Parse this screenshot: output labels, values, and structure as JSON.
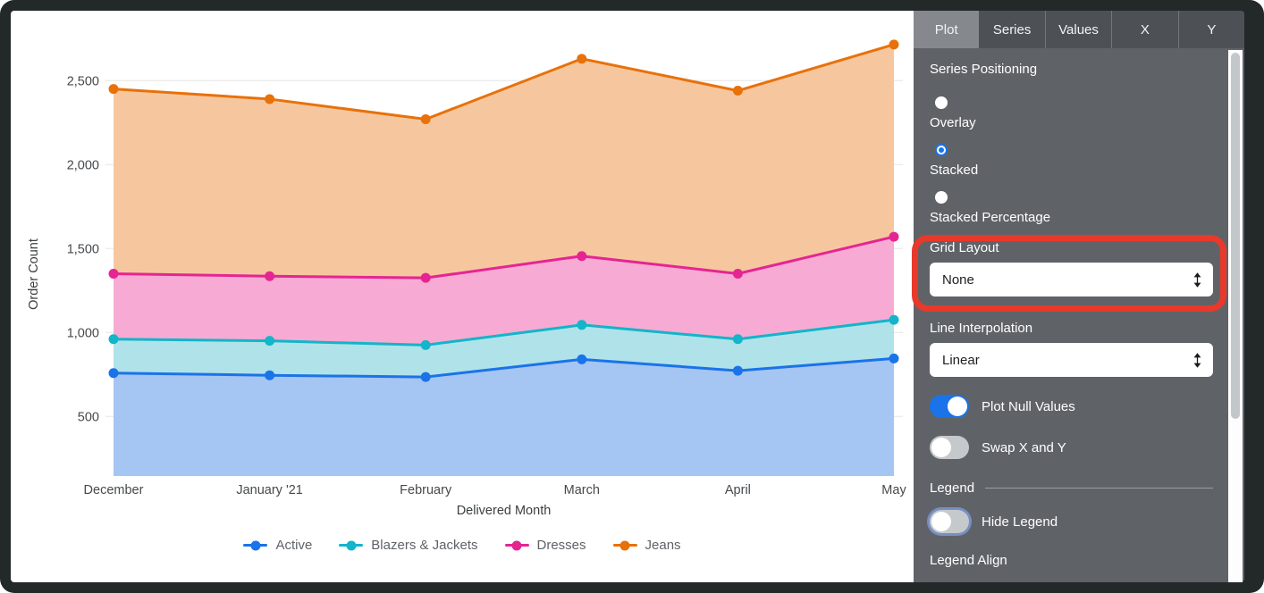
{
  "colors": {
    "accent_blue": "#1a73e8",
    "annotation_red": "#e8392b",
    "panel_background": "#5f6368"
  },
  "annotation": {
    "shape": "rounded-rectangle",
    "color": "#e8392b",
    "target": "Grid Layout"
  },
  "chart_data": {
    "type": "area",
    "stacking": "stacked",
    "xlabel": "Delivered Month",
    "ylabel": "Order Count",
    "x_categories": [
      "December",
      "January '21",
      "February",
      "March",
      "April",
      "May"
    ],
    "y_ticks": [
      500,
      1000,
      1500,
      2000,
      2500
    ],
    "ylim": [
      145,
      2820
    ],
    "grid": "horizontal",
    "legend_position": "bottom",
    "series": [
      {
        "name": "Active",
        "color": "#1a73e8",
        "fill_color": "#a5c5f3",
        "values": [
          758,
          745,
          735,
          840,
          772,
          845
        ],
        "stacked_totals": [
          758,
          745,
          735,
          840,
          772,
          845
        ]
      },
      {
        "name": "Blazers & Jackets",
        "color": "#12b5c9",
        "fill_color": "#b0e2ea",
        "values": [
          202,
          205,
          190,
          205,
          188,
          230
        ],
        "stacked_totals": [
          960,
          950,
          925,
          1045,
          960,
          1075
        ]
      },
      {
        "name": "Dresses",
        "color": "#e52592",
        "fill_color": "#f7aad4",
        "values": [
          390,
          385,
          400,
          410,
          390,
          495
        ],
        "stacked_totals": [
          1350,
          1335,
          1325,
          1455,
          1350,
          1570
        ]
      },
      {
        "name": "Jeans",
        "color": "#e8710a",
        "fill_color": "#f6c79f",
        "values": [
          1100,
          1055,
          945,
          1175,
          1090,
          1145
        ],
        "stacked_totals": [
          2450,
          2390,
          2270,
          2630,
          2440,
          2715
        ]
      }
    ]
  },
  "panel": {
    "tabs": [
      {
        "label": "Plot",
        "active": true
      },
      {
        "label": "Series",
        "active": false
      },
      {
        "label": "Values",
        "active": false
      },
      {
        "label": "X",
        "active": false
      },
      {
        "label": "Y",
        "active": false
      }
    ],
    "series_positioning": {
      "label": "Series Positioning",
      "options": [
        {
          "label": "Overlay",
          "selected": false
        },
        {
          "label": "Stacked",
          "selected": true
        },
        {
          "label": "Stacked Percentage",
          "selected": false
        }
      ]
    },
    "grid_layout": {
      "label": "Grid Layout",
      "value": "None"
    },
    "line_interpolation": {
      "label": "Line Interpolation",
      "value": "Linear"
    },
    "plot_null_values": {
      "label": "Plot Null Values",
      "on": true
    },
    "swap_x_y": {
      "label": "Swap X and Y",
      "on": false
    },
    "legend_section": {
      "header": "Legend",
      "hide_legend": {
        "label": "Hide Legend",
        "on": false
      },
      "legend_align_label": "Legend Align"
    }
  }
}
